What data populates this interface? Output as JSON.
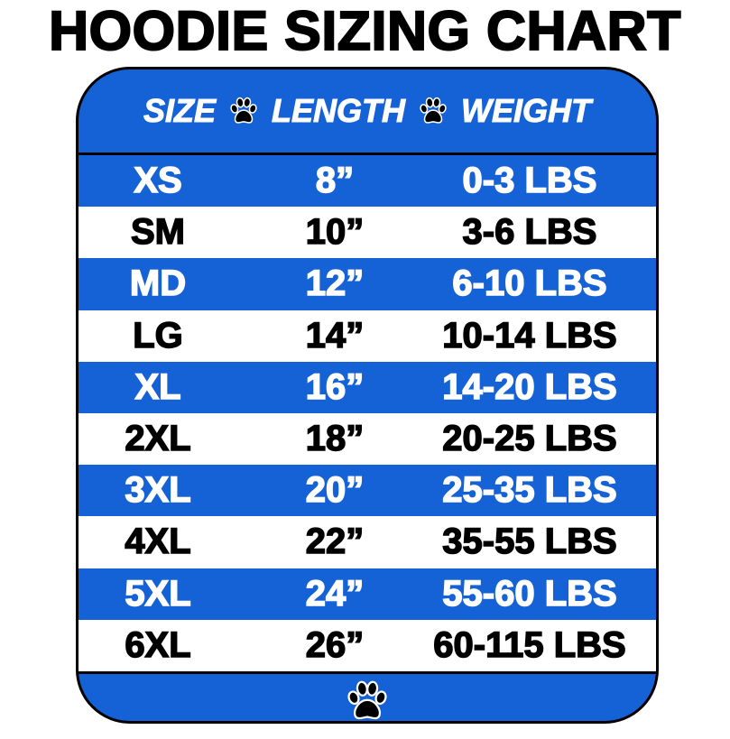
{
  "title": "HOODIE SIZING CHART",
  "colors": {
    "blue": "#1562d6",
    "white": "#ffffff",
    "text_dark": "#000000"
  },
  "header": {
    "size": "SIZE",
    "length": "LENGTH",
    "weight": "WEIGHT",
    "separator_icon": "paw-icon"
  },
  "rows": [
    {
      "size": "XS",
      "length": "8”",
      "weight": "0-3 LBS"
    },
    {
      "size": "SM",
      "length": "10”",
      "weight": "3-6 LBS"
    },
    {
      "size": "MD",
      "length": "12”",
      "weight": "6-10 LBS"
    },
    {
      "size": "LG",
      "length": "14”",
      "weight": "10-14 LBS"
    },
    {
      "size": "XL",
      "length": "16”",
      "weight": "14-20 LBS"
    },
    {
      "size": "2XL",
      "length": "18”",
      "weight": "20-25 LBS"
    },
    {
      "size": "3XL",
      "length": "20”",
      "weight": "25-35 LBS"
    },
    {
      "size": "4XL",
      "length": "22”",
      "weight": "35-55 LBS"
    },
    {
      "size": "5XL",
      "length": "24”",
      "weight": "55-60 LBS"
    },
    {
      "size": "6XL",
      "length": "26”",
      "weight": "60-115 LBS"
    }
  ],
  "footer": {
    "icon": "paw-icon"
  }
}
